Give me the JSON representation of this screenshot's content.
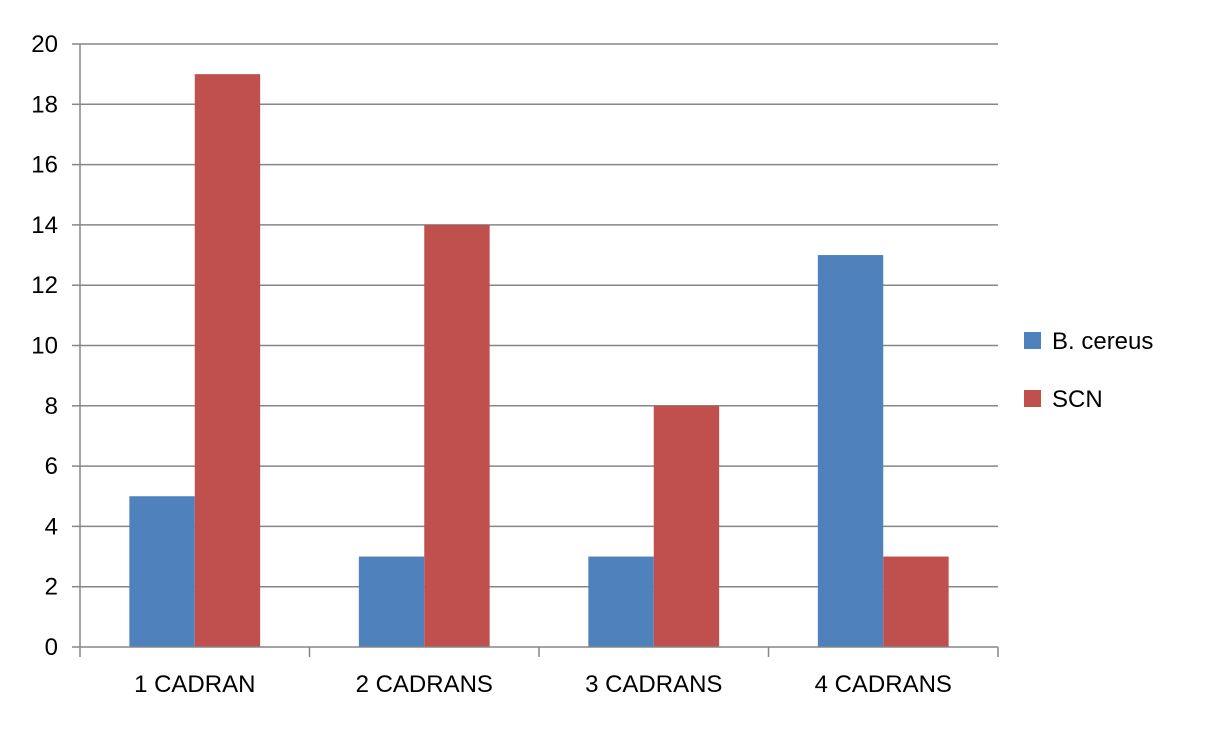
{
  "chart_data": {
    "type": "bar",
    "title": "",
    "xlabel": "",
    "ylabel": "",
    "categories": [
      "1 CADRAN",
      "2 CADRANS",
      "3 CADRANS",
      "4 CADRANS"
    ],
    "series": [
      {
        "name": "B. cereus",
        "color": "#4F81BD",
        "values": [
          5,
          3,
          3,
          13
        ]
      },
      {
        "name": "SCN",
        "color": "#C0504D",
        "values": [
          19,
          14,
          8,
          3
        ]
      }
    ],
    "ylim": [
      0,
      20
    ],
    "yticks": [
      0,
      2,
      4,
      6,
      8,
      10,
      12,
      14,
      16,
      18,
      20
    ],
    "grid": true,
    "legend_position": "right"
  }
}
